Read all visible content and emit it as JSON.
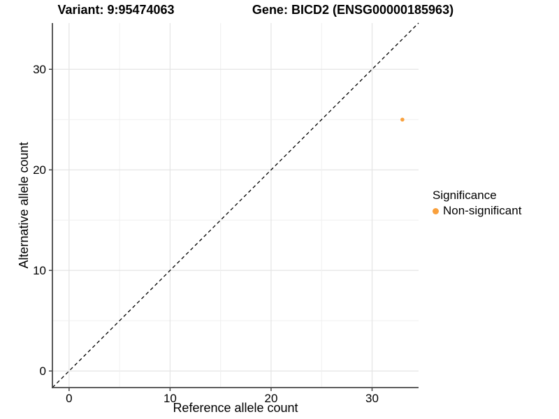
{
  "chart_data": {
    "type": "scatter",
    "title_left": "Variant: 9:95474063",
    "title_right": "Gene: BICD2 (ENSG00000185963)",
    "xlabel": "Reference allele count",
    "ylabel": "Alternative allele count",
    "xlim": [
      -1.65,
      34.6
    ],
    "ylim": [
      -1.65,
      34.6
    ],
    "xticks": [
      0,
      10,
      20,
      30
    ],
    "yticks": [
      0,
      10,
      20,
      30
    ],
    "grid": true,
    "grid_interval": 5,
    "identity_line": {
      "style": "dashed",
      "slope": 1,
      "intercept": 0,
      "color": "#000000"
    },
    "series": [
      {
        "name": "Non-significant",
        "color": "#F9A03C",
        "points": [
          {
            "x": 33,
            "y": 25
          }
        ]
      }
    ],
    "legend": {
      "title": "Significance",
      "position": "right",
      "items": [
        {
          "label": "Non-significant",
          "color": "#F9A03C"
        }
      ]
    },
    "style": {
      "background": "#FFFFFF",
      "grid_major": "#E4E4E4",
      "grid_minor": "#F0F0F0",
      "axis_line": "#474747",
      "text_color": "#000000"
    }
  }
}
